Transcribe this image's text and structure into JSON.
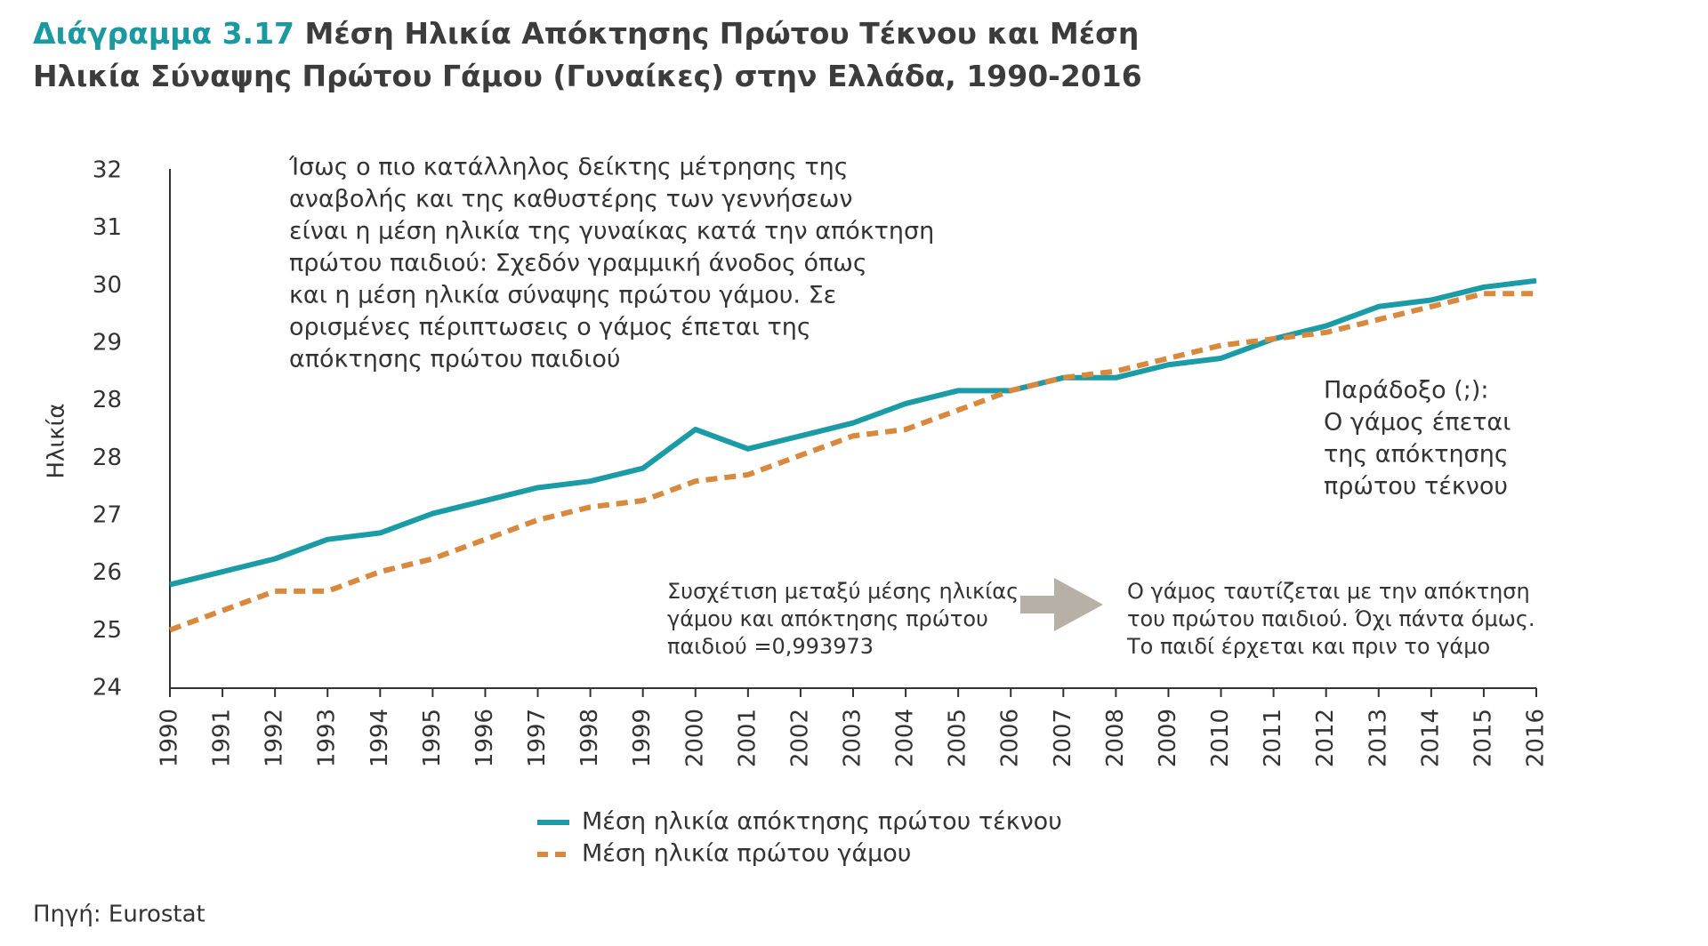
{
  "chart_data": {
    "type": "line",
    "title_number": "Διάγραμμα 3.17",
    "title": "Μέση Ηλικία Απόκτησης Πρώτου Τέκνου και Μέση Ηλικία Σύναψης Πρώτου Γάμου (Γυναίκες) στην Ελλάδα, 1990-2016",
    "y_label": "Ηλικία",
    "categories": [
      "1990",
      "1991",
      "1992",
      "1993",
      "1994",
      "1995",
      "1996",
      "1997",
      "1998",
      "1999",
      "2000",
      "2001",
      "2002",
      "2003",
      "2004",
      "2005",
      "2006",
      "2007",
      "2008",
      "2009",
      "2010",
      "2011",
      "2012",
      "2013",
      "2014",
      "2015",
      "2016"
    ],
    "series": [
      {
        "name": "Μέση ηλικία απόκτησης πρώτου τέκνου",
        "color": "#1a9ba6",
        "dashed": false,
        "values": [
          25.6,
          25.8,
          26.0,
          26.3,
          26.4,
          26.7,
          26.9,
          27.1,
          27.2,
          27.4,
          28.0,
          27.7,
          27.9,
          28.1,
          28.4,
          28.6,
          28.6,
          28.8,
          28.8,
          29.0,
          29.1,
          29.4,
          29.6,
          29.9,
          30.0,
          30.2,
          30.3
        ]
      },
      {
        "name": "Μέση ηλικία πρώτου γάμου",
        "color": "#d9893e",
        "dashed": true,
        "values": [
          24.9,
          25.2,
          25.5,
          25.5,
          25.8,
          26.0,
          26.3,
          26.6,
          26.8,
          26.9,
          27.2,
          27.3,
          27.6,
          27.9,
          28.0,
          28.3,
          28.6,
          28.8,
          28.9,
          29.1,
          29.3,
          29.4,
          29.5,
          29.7,
          29.9,
          30.1,
          30.1
        ]
      }
    ],
    "ylim": [
      24,
      32
    ],
    "yticks": [
      24,
      {
        "value": 24.889,
        "label": "25"
      },
      {
        "value": 25.778,
        "label": "26"
      },
      {
        "value": 26.667,
        "label": "27"
      },
      {
        "value": 27.556,
        "label": "28"
      },
      {
        "value": 28.444,
        "label": "28"
      },
      {
        "value": 29.333,
        "label": "29"
      },
      {
        "value": 30.222,
        "label": "30"
      },
      {
        "value": 31.111,
        "label": "31"
      },
      32
    ],
    "grid": false,
    "annotations": [
      [
        "Ίσως ο πιο κατάλληλος δείκτης μέτρησης της",
        "αναβολής και της καθυστέρης των γεννήσεων",
        "είναι η μέση ηλικία της γυναίκας κατά την απόκτηση",
        "πρώτου παιδιού: Σχεδόν γραμμική άνοδος όπως",
        "και η μέση ηλικία σύναψης πρώτου γάμου. Σε",
        "ορισμένες πέριπτωσεις ο γάμος έπεται της",
        "απόκτησης πρώτου παιδιού"
      ],
      [
        "Παράδοξο (;):",
        "Ο γάμος έπεται",
        "της απόκτησης",
        "πρώτου τέκνου"
      ],
      [
        "Συσχέτιση μεταξύ μέσης ηλικίας",
        "γάμου και απόκτησης πρώτου",
        "παιδιού =0,993973"
      ],
      [
        "Ο γάμος ταυτίζεται με την απόκτηση",
        "του πρώτου παιδιού.  Όχι πάντα όμως.",
        "Το παιδί έρχεται και πριν το γάμο"
      ]
    ],
    "source": "Πηγή: Eurostat"
  }
}
